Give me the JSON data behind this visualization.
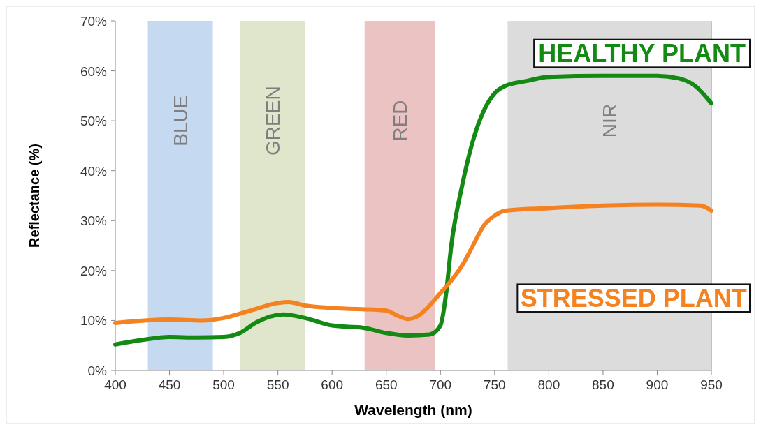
{
  "chart_data": {
    "type": "line",
    "xlabel": "Wavelength (nm)",
    "ylabel": "Reflectance (%)",
    "xlim": [
      400,
      950
    ],
    "xticks": [
      400,
      450,
      500,
      550,
      600,
      650,
      700,
      750,
      800,
      850,
      900,
      950
    ],
    "ylim": [
      0,
      70
    ],
    "yticks": [
      {
        "value": 0,
        "label": "0%"
      },
      {
        "value": 10,
        "label": "10%"
      },
      {
        "value": 20,
        "label": "20%"
      },
      {
        "value": 30,
        "label": "30%"
      },
      {
        "value": 40,
        "label": "40%"
      },
      {
        "value": 50,
        "label": "50%"
      },
      {
        "value": 60,
        "label": "60%"
      },
      {
        "value": 70,
        "label": "70%"
      }
    ],
    "grid": false,
    "line_style": "solid",
    "marker": "none",
    "bands": [
      {
        "axis": "x",
        "from": 430,
        "to": 490,
        "label": "BLUE",
        "color": "#c5d9f0"
      },
      {
        "axis": "x",
        "from": 515,
        "to": 575,
        "label": "GREEN",
        "color": "#dfe6cc"
      },
      {
        "axis": "x",
        "from": 630,
        "to": 695,
        "label": "RED",
        "color": "#ebc3c3"
      },
      {
        "axis": "x",
        "from": 762,
        "to": 950,
        "label": "NIR",
        "color": "#dcdcdc"
      }
    ],
    "series": [
      {
        "name": "HEALTHY PLANT",
        "color": "#138a13",
        "x": [
          400,
          425,
          450,
          475,
          500,
          515,
          530,
          555,
          575,
          600,
          630,
          650,
          670,
          690,
          700,
          705,
          710,
          720,
          730,
          740,
          750,
          760,
          780,
          800,
          850,
          900,
          920,
          935,
          950
        ],
        "values": [
          5.2,
          6.1,
          6.7,
          6.6,
          6.7,
          7.5,
          9.6,
          11.2,
          10.5,
          9,
          8.5,
          7.5,
          7,
          7.2,
          9,
          15,
          25,
          37,
          46,
          52,
          55.5,
          57,
          58,
          58.8,
          59,
          59,
          58.5,
          57,
          53.5
        ]
      },
      {
        "name": "STRESSED PLANT",
        "color": "#f58220",
        "x": [
          400,
          450,
          480,
          500,
          525,
          550,
          560,
          575,
          600,
          650,
          660,
          670,
          680,
          690,
          700,
          710,
          720,
          730,
          740,
          750,
          760,
          800,
          850,
          900,
          940,
          950
        ],
        "values": [
          9.5,
          10.2,
          10,
          10.5,
          12,
          13.5,
          13.7,
          13,
          12.5,
          12,
          11,
          10.3,
          11,
          13,
          15.5,
          18,
          21,
          25,
          29,
          31,
          32,
          32.5,
          33,
          33.2,
          33,
          32
        ]
      }
    ]
  }
}
